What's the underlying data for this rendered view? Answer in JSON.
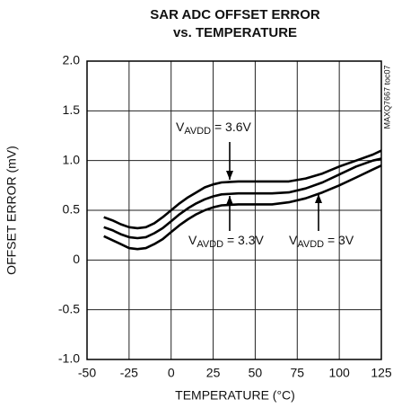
{
  "chart_data": {
    "type": "line",
    "title": [
      "SAR ADC OFFSET ERROR",
      "vs. TEMPERATURE"
    ],
    "xlabel": "TEMPERATURE (°C)",
    "ylabel": "OFFSET ERROR (mV)",
    "side_note": "MAXQ7667 toc07",
    "x": [
      -40,
      -35,
      -30,
      -25,
      -20,
      -15,
      -10,
      -5,
      0,
      5,
      10,
      15,
      20,
      25,
      30,
      40,
      50,
      60,
      70,
      80,
      90,
      100,
      110,
      120,
      125
    ],
    "series": [
      {
        "label": [
          "V",
          "AVDD",
          " = 3.6V"
        ],
        "color": "#000000",
        "values": [
          0.43,
          0.4,
          0.36,
          0.33,
          0.32,
          0.33,
          0.37,
          0.43,
          0.5,
          0.57,
          0.63,
          0.68,
          0.73,
          0.76,
          0.78,
          0.79,
          0.79,
          0.79,
          0.79,
          0.82,
          0.87,
          0.94,
          1.0,
          1.06,
          1.1
        ]
      },
      {
        "label": [
          "V",
          "AVDD",
          " = 3.3V"
        ],
        "color": "#000000",
        "values": [
          0.33,
          0.3,
          0.26,
          0.23,
          0.22,
          0.23,
          0.27,
          0.32,
          0.39,
          0.46,
          0.52,
          0.57,
          0.61,
          0.64,
          0.66,
          0.67,
          0.67,
          0.67,
          0.68,
          0.72,
          0.78,
          0.86,
          0.94,
          1.0,
          1.02
        ]
      },
      {
        "label": [
          "V",
          "AVDD",
          " = 3V"
        ],
        "color": "#000000",
        "values": [
          0.24,
          0.2,
          0.16,
          0.12,
          0.11,
          0.12,
          0.16,
          0.21,
          0.28,
          0.35,
          0.41,
          0.46,
          0.5,
          0.53,
          0.55,
          0.56,
          0.56,
          0.56,
          0.58,
          0.62,
          0.68,
          0.75,
          0.83,
          0.91,
          0.95
        ]
      }
    ],
    "xlim": [
      -50,
      125
    ],
    "xticks": [
      -50,
      -25,
      0,
      25,
      50,
      75,
      100,
      125
    ],
    "ylim": [
      -1.0,
      2.0
    ],
    "yticks": [
      {
        "value": -1.0,
        "label": "-1.0"
      },
      -0.5,
      0,
      0.5,
      {
        "value": 1.0,
        "label": "1.0"
      },
      1.5,
      {
        "value": 2.0,
        "label": "2.0"
      }
    ],
    "grid": true
  }
}
